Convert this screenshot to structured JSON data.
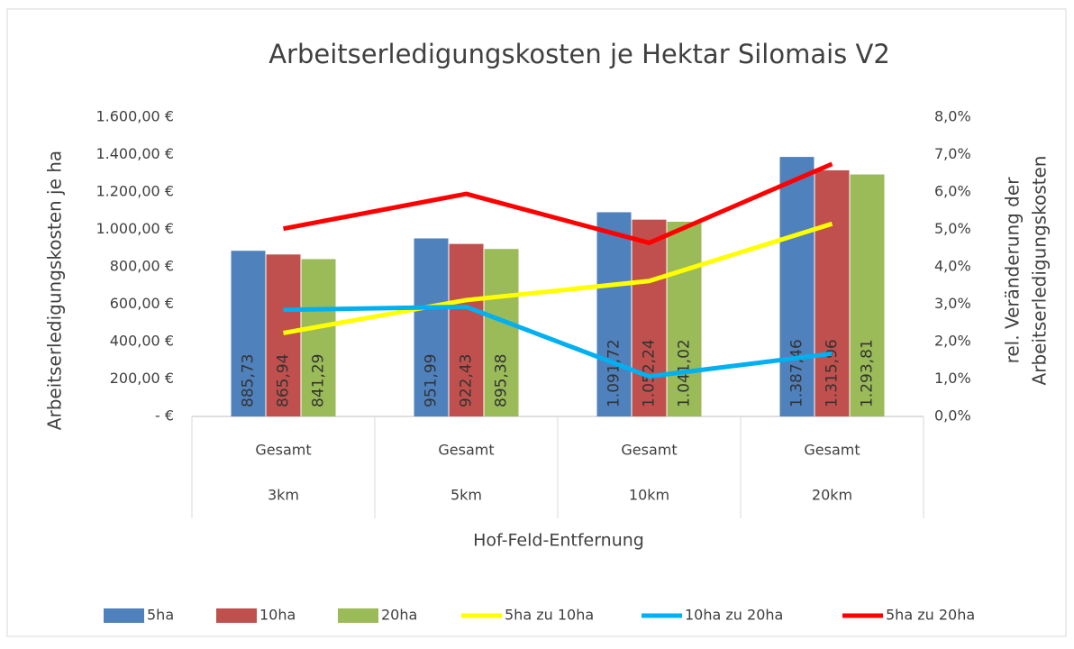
{
  "chart_data": {
    "type": "bar",
    "title": "Arbeitserledigungskosten je Hektar Silomais V2",
    "ylabel": "Arbeitserledigungskosten je ha",
    "y2label": [
      "rel. Veränderung der",
      "Arbeitserledigungskosten"
    ],
    "xlabel": "Hof-Feld-Entfernung",
    "sub_categories": [
      "Gesamt",
      "Gesamt",
      "Gesamt",
      "Gesamt"
    ],
    "categories": [
      "3km",
      "5km",
      "10km",
      "20km"
    ],
    "ylim": [
      0,
      1600
    ],
    "yticks": [
      {
        "value": 0,
        "label": "-  €"
      },
      {
        "value": 200,
        "label": "200,00 €"
      },
      {
        "value": 400,
        "label": "400,00 €"
      },
      {
        "value": 600,
        "label": "600,00 €"
      },
      {
        "value": 800,
        "label": "800,00 €"
      },
      {
        "value": 1000,
        "label": "1.000,00 €"
      },
      {
        "value": 1200,
        "label": "1.200,00 €"
      },
      {
        "value": 1400,
        "label": "1.400,00 €"
      },
      {
        "value": 1600,
        "label": "1.600,00 €"
      }
    ],
    "y2lim": [
      0,
      8
    ],
    "y2ticks": [
      {
        "value": 0,
        "label": "0,0%"
      },
      {
        "value": 1,
        "label": "1,0%"
      },
      {
        "value": 2,
        "label": "2,0%"
      },
      {
        "value": 3,
        "label": "3,0%"
      },
      {
        "value": 4,
        "label": "4,0%"
      },
      {
        "value": 5,
        "label": "5,0%"
      },
      {
        "value": 6,
        "label": "6,0%"
      },
      {
        "value": 7,
        "label": "7,0%"
      },
      {
        "value": 8,
        "label": "8,0%"
      }
    ],
    "legend": "bottom",
    "series": [
      {
        "name": "5ha",
        "type": "bar",
        "color": "#4f81bd",
        "values": [
          885.73,
          951.99,
          1091.72,
          1387.46
        ],
        "value_labels": [
          "885,73",
          "951,99",
          "1.091,72",
          "1.387,46"
        ]
      },
      {
        "name": "10ha",
        "type": "bar",
        "color": "#c0504d",
        "values": [
          865.94,
          922.43,
          1052.24,
          1315.96
        ],
        "value_labels": [
          "865,94",
          "922,43",
          "1.052,24",
          "1.315,96"
        ]
      },
      {
        "name": "20ha",
        "type": "bar",
        "color": "#9bbb59",
        "values": [
          841.29,
          895.38,
          1041.02,
          1293.81
        ],
        "value_labels": [
          "841,29",
          "895,38",
          "1.041,02",
          "1.293,81"
        ]
      },
      {
        "name": "5ha zu 10ha",
        "type": "line",
        "axis": "y2",
        "color": "#ffff00",
        "values": [
          2.23,
          3.11,
          3.62,
          5.15
        ]
      },
      {
        "name": "10ha zu 20ha",
        "type": "line",
        "axis": "y2",
        "color": "#00b0f0",
        "values": [
          2.85,
          2.93,
          1.07,
          1.68
        ]
      },
      {
        "name": "5ha zu 20ha",
        "type": "line",
        "axis": "y2",
        "color": "#ff0000",
        "values": [
          5.02,
          5.95,
          4.64,
          6.75
        ]
      }
    ]
  }
}
